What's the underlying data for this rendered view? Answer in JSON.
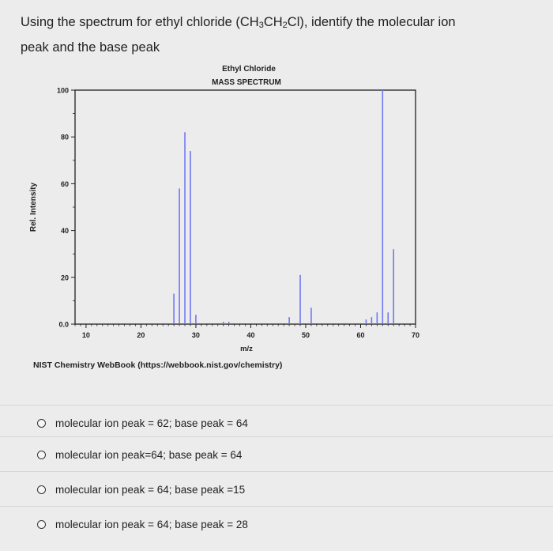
{
  "question": {
    "line1_pre": "Using the spectrum for ethyl chloride (CH",
    "sub1": "3",
    "line1_mid": "CH",
    "sub2": "2",
    "line1_post": "Cl), identify the molecular ion",
    "line2": "peak and the base peak"
  },
  "chart_data": {
    "type": "bar",
    "title": "Ethyl Chloride",
    "subtitle": "MASS SPECTRUM",
    "xlabel": "m/z",
    "ylabel": "Rel. Intensity",
    "xlim": [
      8,
      70
    ],
    "ylim": [
      0,
      100
    ],
    "x_ticks": [
      10,
      20,
      30,
      40,
      50,
      60,
      70
    ],
    "y_ticks": [
      {
        "value": 0,
        "label": "0.0"
      },
      {
        "value": 20,
        "label": "20"
      },
      {
        "value": 40,
        "label": "40"
      },
      {
        "value": 60,
        "label": "60"
      },
      {
        "value": 80,
        "label": "80"
      },
      {
        "value": 100,
        "label": "100"
      }
    ],
    "peaks": [
      {
        "mz": 26,
        "intensity": 13
      },
      {
        "mz": 27,
        "intensity": 58
      },
      {
        "mz": 28,
        "intensity": 82
      },
      {
        "mz": 29,
        "intensity": 74
      },
      {
        "mz": 30,
        "intensity": 4
      },
      {
        "mz": 35,
        "intensity": 1
      },
      {
        "mz": 36,
        "intensity": 1
      },
      {
        "mz": 47,
        "intensity": 3
      },
      {
        "mz": 49,
        "intensity": 21
      },
      {
        "mz": 51,
        "intensity": 7
      },
      {
        "mz": 61,
        "intensity": 2
      },
      {
        "mz": 62,
        "intensity": 3
      },
      {
        "mz": 63,
        "intensity": 5
      },
      {
        "mz": 64,
        "intensity": 100
      },
      {
        "mz": 65,
        "intensity": 5
      },
      {
        "mz": 66,
        "intensity": 32
      }
    ],
    "color": "#6f78f2"
  },
  "credit": "NIST Chemistry WebBook (https://webbook.nist.gov/chemistry)",
  "options": [
    "molecular ion peak = 62; base peak = 64",
    "molecular ion peak=64; base peak = 64",
    "molecular ion peak = 64; base peak =15",
    "molecular ion peak = 64; base peak = 28"
  ]
}
